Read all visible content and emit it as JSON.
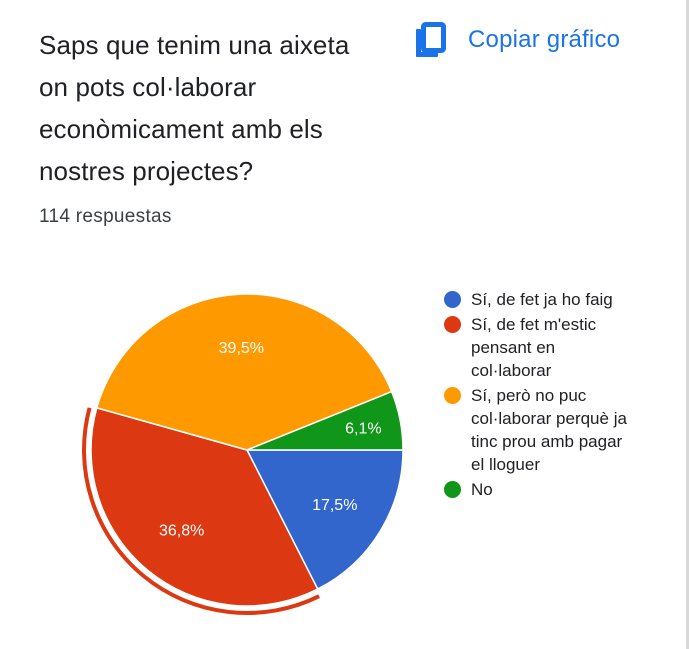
{
  "question": {
    "title": "Saps que tenim una aixeta on pots col·laborar econòmicament amb els nostres projectes?",
    "title_lines": [
      "Saps que tenim una aixeta",
      "on pots col·laborar",
      "econòmicament amb els",
      "nostres projectes?"
    ],
    "response_count": "114 respuestas"
  },
  "toolbar": {
    "copy_label": "Copiar gráfico",
    "copy_icon": "copy-icon"
  },
  "colors": {
    "accent": "#1a73e8"
  },
  "chart_data": {
    "type": "pie",
    "highlighted_index": 1,
    "slices": [
      {
        "label": "Sí, de fet ja ho faig",
        "value": 17.5,
        "display": "17,5%",
        "color": "#3366cc"
      },
      {
        "label": "Sí, de fet m'estic pensant en col·laborar",
        "value": 36.8,
        "display": "36,8%",
        "color": "#dc3912"
      },
      {
        "label": "Sí, però no puc col·laborar perquè ja tinc prou amb pagar el lloguer",
        "value": 39.5,
        "display": "39,5%",
        "color": "#ff9900"
      },
      {
        "label": "No",
        "value": 6.1,
        "display": "6,1%",
        "color": "#109618"
      }
    ],
    "legend": {
      "placement": "right",
      "items": [
        {
          "lines": [
            "Sí, de fet ja ho faig"
          ],
          "color": "#3366cc"
        },
        {
          "lines": [
            "Sí, de fet m'estic",
            "pensant en",
            "col·laborar"
          ],
          "color": "#dc3912"
        },
        {
          "lines": [
            "Sí, però no puc",
            "col·laborar perquè ja",
            "tinc prou amb pagar",
            "el lloguer"
          ],
          "color": "#ff9900"
        },
        {
          "lines": [
            "No"
          ],
          "color": "#109618"
        }
      ]
    }
  }
}
